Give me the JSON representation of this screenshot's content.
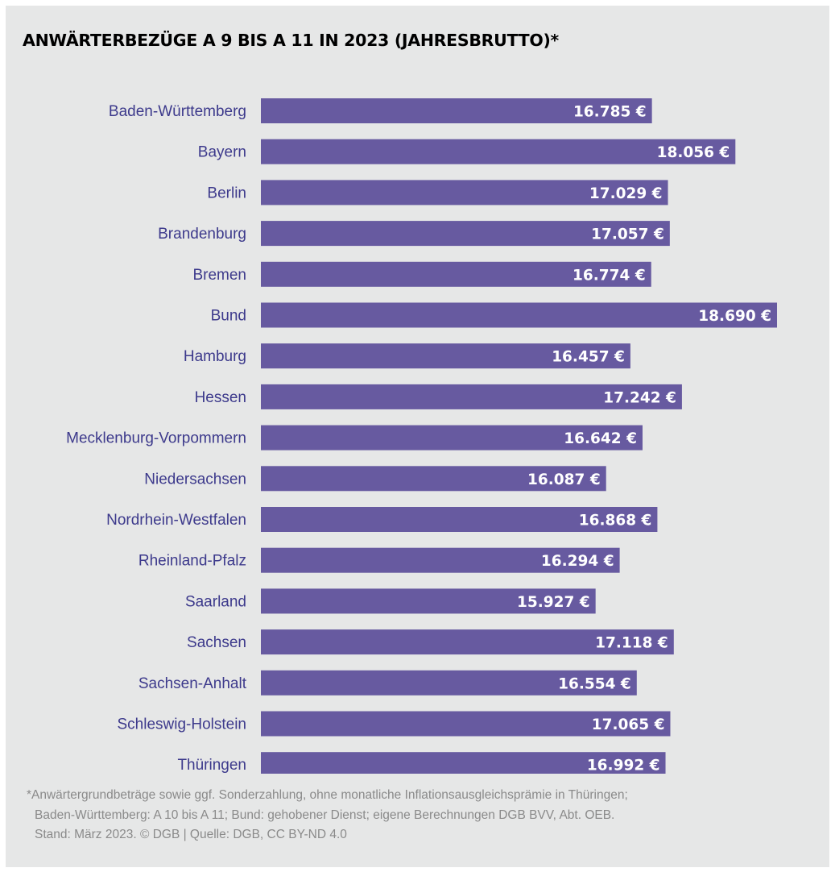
{
  "chart_data": {
    "type": "bar",
    "orientation": "horizontal",
    "title": "ANWÄRTERBEZÜGE A 9 BIS A 11 IN 2023 (JAHRESBRUTTO)*",
    "categories": [
      "Baden-Württemberg",
      "Bayern",
      "Berlin",
      "Brandenburg",
      "Bremen",
      "Bund",
      "Hamburg",
      "Hessen",
      "Mecklenburg-Vorpommern",
      "Niedersachsen",
      "Nordrhein-Westfalen",
      "Rheinland-Pfalz",
      "Saarland",
      "Sachsen",
      "Sachsen-Anhalt",
      "Schleswig-Holstein",
      "Thüringen"
    ],
    "values": [
      16785,
      18056,
      17029,
      17057,
      16774,
      18690,
      16457,
      17242,
      16642,
      16087,
      16868,
      16294,
      15927,
      17118,
      16554,
      17065,
      16992
    ],
    "value_labels": [
      "16.785 €",
      "18.056 €",
      "17.029 €",
      "17.057 €",
      "16.774 €",
      "18.690 €",
      "16.457 €",
      "17.242 €",
      "16.642 €",
      "16.087 €",
      "16.868 €",
      "16.294 €",
      "15.927 €",
      "17.118 €",
      "16.554 €",
      "17.065 €",
      "16.992 €"
    ],
    "xlim": [
      10830,
      18690
    ],
    "grid": false,
    "legend": "none",
    "colors": {
      "bar": "#675aa0",
      "category_label": "#3d3a8c",
      "value_label": "#ffffff"
    }
  },
  "footnote": {
    "lines": [
      "*Anwärtergrundbeträge sowie ggf. Sonderzahlung, ohne monatliche Inflationsausgleichsprämie in Thüringen;",
      "Baden-Württemberg: A 10 bis A 11; Bund: gehobener Dienst; eigene Berechnungen DGB BVV, Abt. OEB.",
      "Stand: März 2023. © DGB | Quelle: DGB, CC BY-ND 4.0"
    ]
  }
}
